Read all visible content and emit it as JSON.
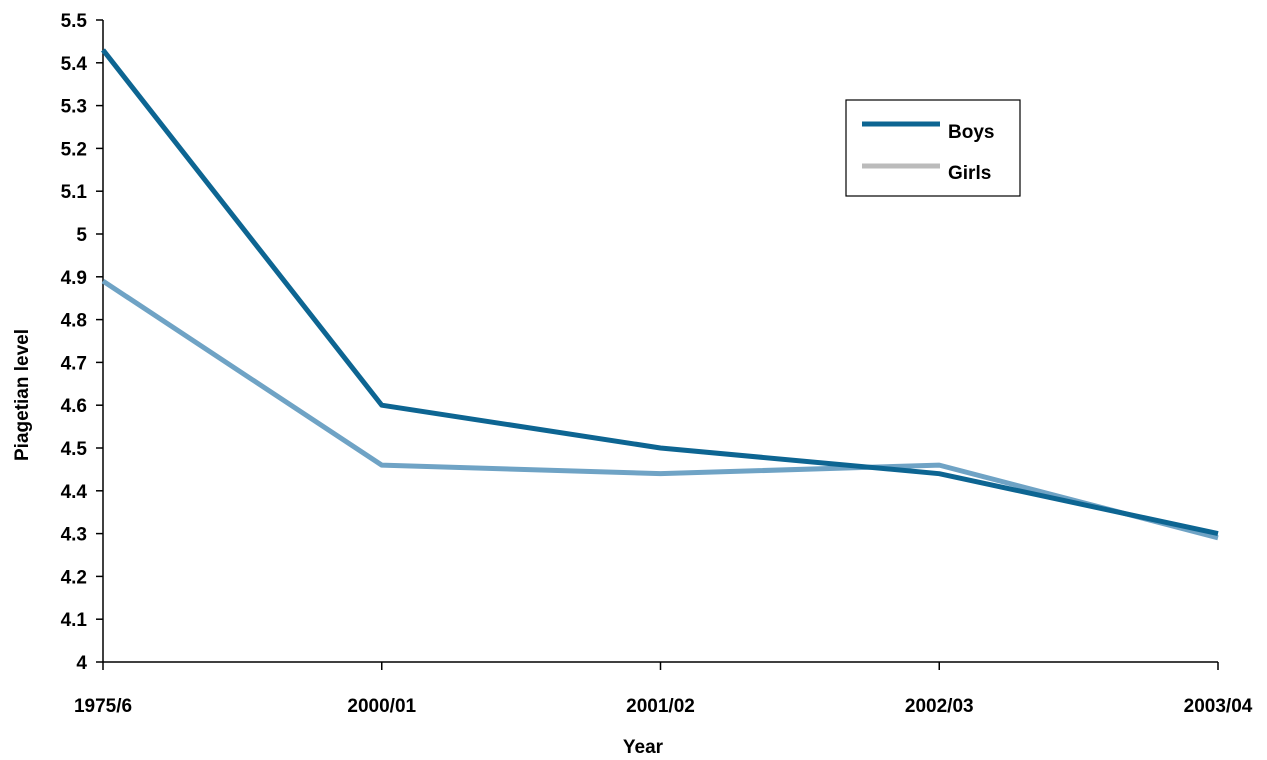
{
  "chart_data": {
    "type": "line",
    "title": "",
    "xlabel": "Year",
    "ylabel": "Piagetian level",
    "categories": [
      "1975/6",
      "2000/01",
      "2001/02",
      "2002/03",
      "2003/04"
    ],
    "ylim": [
      4,
      5.5
    ],
    "yticks": [
      "4",
      "4.1",
      "4.2",
      "4.3",
      "4.4",
      "4.5",
      "4.6",
      "4.7",
      "4.8",
      "4.9",
      "5",
      "5.1",
      "5.2",
      "5.3",
      "5.4",
      "5.5"
    ],
    "grid": false,
    "legend_position": "top-right",
    "series": [
      {
        "name": "Boys",
        "values": [
          5.43,
          4.6,
          4.5,
          4.44,
          4.3
        ],
        "color": "#0d6592"
      },
      {
        "name": "Girls",
        "values": [
          4.89,
          4.46,
          4.44,
          4.46,
          4.29
        ],
        "color": "#6fa3c5",
        "legend_color": "#bbbbbb"
      }
    ]
  }
}
